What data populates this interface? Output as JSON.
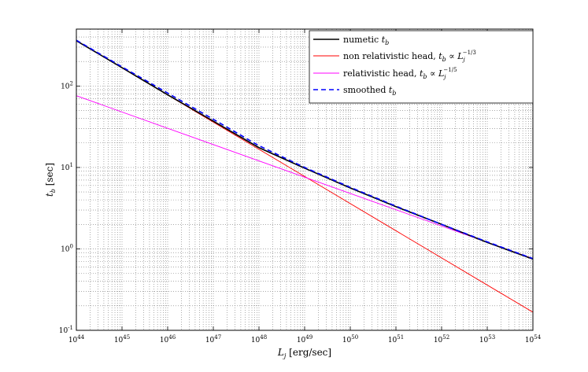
{
  "chart_data": {
    "type": "line",
    "xscale": "log",
    "yscale": "log",
    "xlim": [
      1e+44,
      1e+54
    ],
    "ylim": [
      0.1,
      500
    ],
    "grid": true,
    "xlabel": "L_j [erg/sec]",
    "ylabel": "t_b [sec]",
    "xticks": [
      {
        "value": 1e+44,
        "mant": "10",
        "exp": "44"
      },
      {
        "value": 1e+45,
        "mant": "10",
        "exp": "45"
      },
      {
        "value": 1e+46,
        "mant": "10",
        "exp": "46"
      },
      {
        "value": 1e+47,
        "mant": "10",
        "exp": "47"
      },
      {
        "value": 1e+48,
        "mant": "10",
        "exp": "48"
      },
      {
        "value": 1e+49,
        "mant": "10",
        "exp": "49"
      },
      {
        "value": 1e+50,
        "mant": "10",
        "exp": "50"
      },
      {
        "value": 1e+51,
        "mant": "10",
        "exp": "51"
      },
      {
        "value": 1e+52,
        "mant": "10",
        "exp": "52"
      },
      {
        "value": 1e+53,
        "mant": "10",
        "exp": "53"
      },
      {
        "value": 1e+54,
        "mant": "10",
        "exp": "54"
      }
    ],
    "yticks": [
      {
        "value": 0.1,
        "mant": "10",
        "exp": "-1"
      },
      {
        "value": 1,
        "mant": "10",
        "exp": "0"
      },
      {
        "value": 10,
        "mant": "10",
        "exp": "1"
      },
      {
        "value": 100,
        "mant": "10",
        "exp": "2"
      }
    ],
    "legend_position": "top-right",
    "series": [
      {
        "name": "numetic t_b",
        "color": "#000000",
        "style": "solid",
        "x": [
          1e+44,
          1e+45,
          1e+46,
          1e+47,
          1e+48,
          1e+49,
          1e+50,
          1e+51,
          1e+52,
          1e+53,
          1e+54
        ],
        "y": [
          360,
          168,
          78,
          37,
          17.5,
          9.8,
          5.6,
          3.3,
          2.0,
          1.2,
          0.75
        ]
      },
      {
        "name": "non relativistic head, t_b ∝ L_j^{-1/3}",
        "color": "#ff0000",
        "style": "solid",
        "x": [
          1e+44,
          1e+54
        ],
        "y": [
          360,
          0.167
        ]
      },
      {
        "name": "relativistic head, t_b ∝ L_j^{-1/5}",
        "color": "#ff00ff",
        "style": "solid",
        "x": [
          1e+44,
          1e+54
        ],
        "y": [
          76,
          0.76
        ]
      },
      {
        "name": "smoothed t_b",
        "color": "#0000ff",
        "style": "dashed",
        "x": [
          1e+44,
          1e+45,
          1e+46,
          1e+47,
          1e+48,
          1e+49,
          1e+50,
          1e+51,
          1e+52,
          1e+53,
          1e+54
        ],
        "y": [
          365,
          172,
          82,
          39,
          18.5,
          10.0,
          5.7,
          3.35,
          2.0,
          1.22,
          0.76
        ]
      }
    ],
    "legend": {
      "entries": [
        {
          "main": "numetic ",
          "var": "t",
          "sub": "b",
          "rest": ""
        },
        {
          "main": "non relativistic head, ",
          "var": "t",
          "sub": "b",
          "rest": " ∝ ",
          "var2": "L",
          "sub2": "j",
          "sup2": "−1/3"
        },
        {
          "main": "relativistic head, ",
          "var": "t",
          "sub": "b",
          "rest": " ∝ ",
          "var2": "L",
          "sub2": "j",
          "sup2": "−1/5"
        },
        {
          "main": "smoothed ",
          "var": "t",
          "sub": "b",
          "rest": ""
        }
      ]
    }
  }
}
